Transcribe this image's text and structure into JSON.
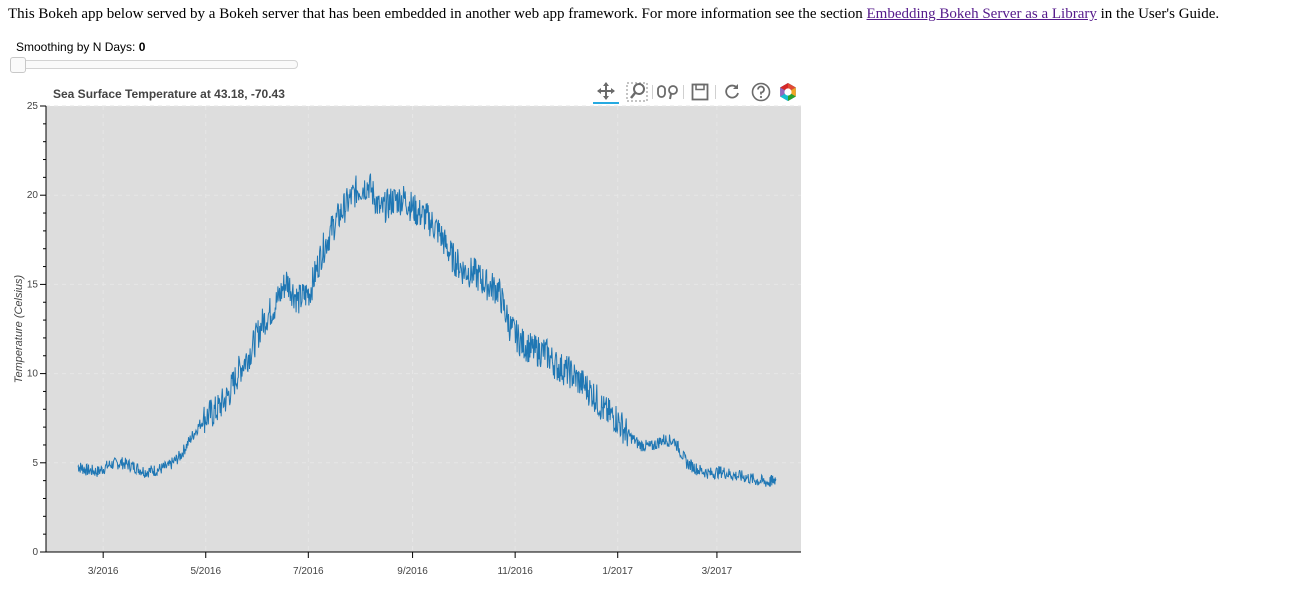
{
  "intro": {
    "text_before": "This Bokeh app below served by a Bokeh server that has been embedded in another web app framework. For more information see the section ",
    "link_text": "Embedding Bokeh Server as a Library",
    "text_after": " in the User's Guide."
  },
  "slider": {
    "label": "Smoothing by N Days:",
    "value": "0",
    "fraction": 0
  },
  "toolbar": {
    "tools": [
      "pan-icon",
      "box-zoom-icon",
      "wheel-zoom-icon",
      "save-icon",
      "reset-icon",
      "help-icon",
      "bokeh-logo-icon"
    ]
  },
  "colors": {
    "line": "#1f77b4",
    "plot_bg": "#dddddd",
    "link": "#551a8b"
  },
  "chart_data": {
    "type": "line",
    "title": "Sea Surface Temperature at 43.18, -70.43",
    "xlabel": "",
    "ylabel": "Temperature (Celsius)",
    "x_tick_labels": [
      "3/2016",
      "5/2016",
      "7/2016",
      "9/2016",
      "11/2016",
      "1/2017",
      "3/2017"
    ],
    "x_ticks": [
      "2016-03-01",
      "2016-05-01",
      "2016-07-01",
      "2016-09-01",
      "2016-11-01",
      "2017-01-01",
      "2017-03-01"
    ],
    "xlim": [
      "2016-01-27",
      "2017-04-20"
    ],
    "y_ticks": [
      0,
      5,
      10,
      15,
      20,
      25
    ],
    "ylim": [
      0,
      25
    ],
    "grid": true,
    "legend": false,
    "series": [
      {
        "x": [
          "2016-02-15",
          "2016-02-20",
          "2016-02-27",
          "2016-03-05",
          "2016-03-12",
          "2016-03-19",
          "2016-03-26",
          "2016-04-02",
          "2016-04-09",
          "2016-04-16",
          "2016-04-23",
          "2016-04-30",
          "2016-05-07",
          "2016-05-14",
          "2016-05-21",
          "2016-05-28",
          "2016-06-04",
          "2016-06-11",
          "2016-06-18",
          "2016-06-25",
          "2016-07-02",
          "2016-07-09",
          "2016-07-16",
          "2016-07-23",
          "2016-07-30",
          "2016-08-06",
          "2016-08-13",
          "2016-08-20",
          "2016-08-27",
          "2016-09-03",
          "2016-09-10",
          "2016-09-17",
          "2016-09-24",
          "2016-10-01",
          "2016-10-08",
          "2016-10-15",
          "2016-10-22",
          "2016-10-29",
          "2016-11-05",
          "2016-11-12",
          "2016-11-19",
          "2016-11-26",
          "2016-12-03",
          "2016-12-10",
          "2016-12-17",
          "2016-12-24",
          "2016-12-31",
          "2017-01-07",
          "2017-01-14",
          "2017-01-21",
          "2017-01-28",
          "2017-02-04",
          "2017-02-11",
          "2017-02-18",
          "2017-02-25",
          "2017-03-04",
          "2017-03-11",
          "2017-03-18",
          "2017-03-25",
          "2017-04-01",
          "2017-04-05"
        ],
        "values": [
          4.8,
          4.6,
          4.5,
          4.9,
          5.0,
          4.8,
          4.5,
          4.6,
          4.8,
          5.4,
          6.5,
          7.5,
          7.9,
          8.7,
          10.2,
          11.3,
          12.9,
          13.8,
          15.2,
          14.1,
          14.6,
          16.8,
          18.3,
          19.4,
          20.3,
          20.6,
          19.1,
          19.7,
          19.8,
          19.1,
          18.7,
          17.9,
          16.6,
          15.8,
          15.6,
          15.0,
          14.7,
          12.6,
          11.7,
          11.3,
          11.2,
          10.4,
          10.1,
          9.5,
          8.9,
          7.9,
          7.5,
          6.6,
          6.0,
          5.9,
          6.3,
          6.2,
          5.0,
          4.6,
          4.4,
          4.5,
          4.3,
          4.2,
          4.0,
          3.9,
          4.1
        ]
      }
    ]
  }
}
